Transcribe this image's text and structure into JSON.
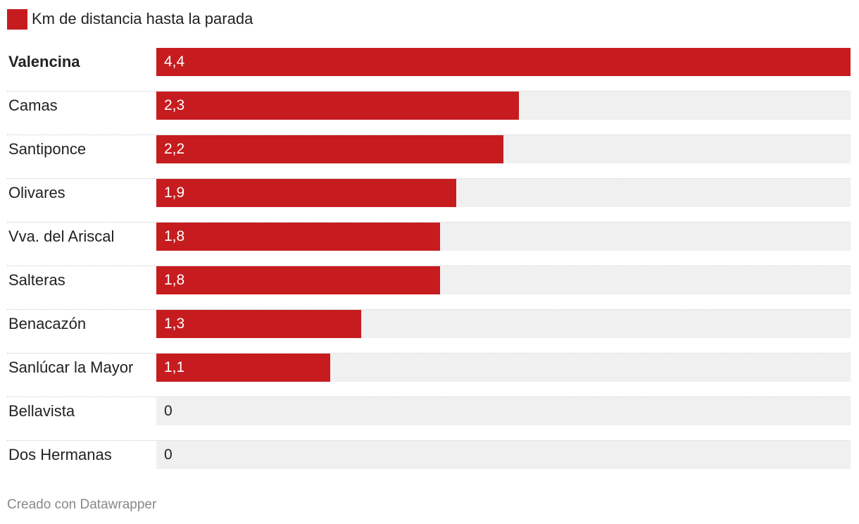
{
  "chart_data": {
    "type": "bar",
    "orientation": "horizontal",
    "series": [
      {
        "name": "Km de distancia hasta la parada",
        "color": "#c71c1f"
      }
    ],
    "categories": [
      "Valencina",
      "Camas",
      "Santiponce",
      "Olivares",
      "Vva. del Ariscal",
      "Salteras",
      "Benacazón",
      "Sanlúcar la Mayor",
      "Bellavista",
      "Dos Hermanas"
    ],
    "values": [
      4.4,
      2.3,
      2.2,
      1.9,
      1.8,
      1.8,
      1.3,
      1.1,
      0,
      0
    ],
    "value_labels": [
      "4,4",
      "2,3",
      "2,2",
      "1,9",
      "1,8",
      "1,8",
      "1,3",
      "1,1",
      "0",
      "0"
    ],
    "highlighted": [
      "Valencina"
    ],
    "xlim": [
      0,
      4.4
    ],
    "legend": "top-left",
    "grid": false
  },
  "credit": "Creado con Datawrapper",
  "colors": {
    "bar": "#c71c1f",
    "track": "#f0f0f0",
    "value_on_bar": "#ffffff",
    "value_off_bar": "#222222"
  }
}
